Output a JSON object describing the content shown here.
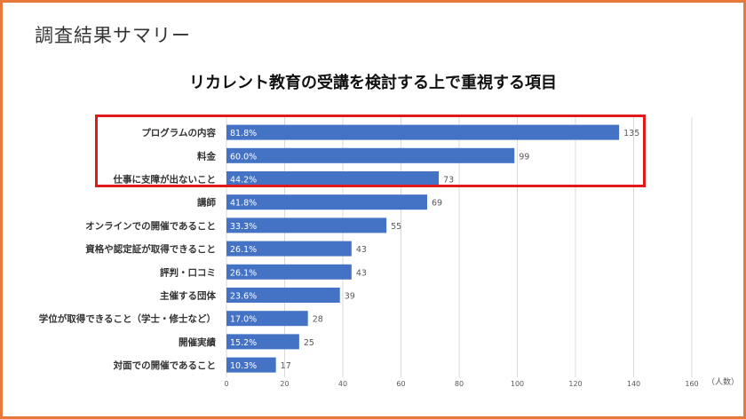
{
  "header": {
    "title": "調査結果サマリー"
  },
  "colors": {
    "bar": "#4472c4",
    "highlight": "#e01a1a",
    "border": "#e8793a",
    "grid": "#d9d9d9"
  },
  "chart_data": {
    "type": "bar",
    "orientation": "horizontal",
    "title": "リカレント教育の受講を検討する上で重視する項目",
    "xlabel": "（人数）",
    "ylabel": "",
    "xlim": [
      0,
      160
    ],
    "x_ticks": [
      "0",
      "20",
      "40",
      "60",
      "80",
      "100",
      "120",
      "140",
      "160"
    ],
    "grid": true,
    "categories": [
      "プログラムの内容",
      "料金",
      "仕事に支障が出ないこと",
      "講師",
      "オンラインでの開催であること",
      "資格や認定証が取得できること",
      "評判・口コミ",
      "主催する団体",
      "学位が取得できること（学士・修士など）",
      "開催実績",
      "対面での開催であること"
    ],
    "values": [
      135,
      99,
      73,
      69,
      55,
      43,
      43,
      39,
      28,
      25,
      17
    ],
    "percent_labels": [
      "81.8%",
      "60.0%",
      "44.2%",
      "41.8%",
      "33.3%",
      "26.1%",
      "26.1%",
      "23.6%",
      "17.0%",
      "15.2%",
      "10.3%"
    ],
    "value_labels": [
      "135",
      "99",
      "73",
      "69",
      "55",
      "43",
      "43",
      "39",
      "28",
      "25",
      "17"
    ],
    "highlighted_categories": [
      "プログラムの内容",
      "料金",
      "仕事に支障が出ないこと"
    ]
  }
}
